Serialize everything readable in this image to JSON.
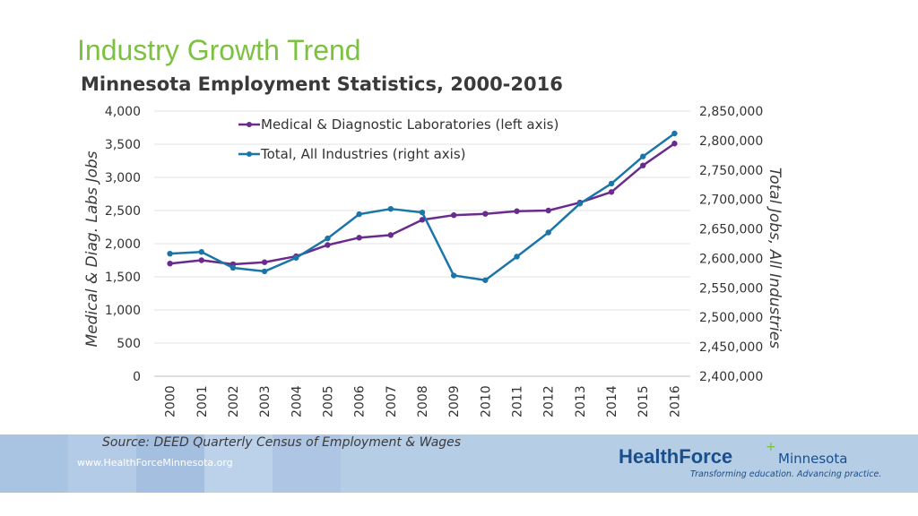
{
  "header": {
    "title": "Industry Growth Trend",
    "subtitle": "Minnesota Employment Statistics, 2000-2016"
  },
  "colors": {
    "title_green": "#7dc142",
    "medical_series": "#6a2c8c",
    "total_series": "#1a76a8",
    "brand_blue": "#1a4f8b",
    "footer_band": "#b6cde6"
  },
  "chart_data": {
    "type": "line",
    "x": [
      "2000",
      "2001",
      "2002",
      "2003",
      "2004",
      "2005",
      "2006",
      "2007",
      "2008",
      "2009",
      "2010",
      "2011",
      "2012",
      "2013",
      "2014",
      "2015",
      "2016"
    ],
    "series": [
      {
        "name": "Medical & Diagnostic Laboratories (left axis)",
        "axis": "left",
        "values": [
          1700,
          1750,
          1690,
          1720,
          1810,
          1980,
          2090,
          2130,
          2360,
          2430,
          2450,
          2490,
          2500,
          2620,
          2780,
          3180,
          3510
        ]
      },
      {
        "name": "Total, All Industries (right axis)",
        "axis": "right",
        "values": [
          2608000,
          2611000,
          2584000,
          2578000,
          2601000,
          2634000,
          2675000,
          2684000,
          2678000,
          2571000,
          2563000,
          2603000,
          2644000,
          2693000,
          2727000,
          2773000,
          2812000
        ]
      }
    ],
    "left_axis": {
      "label": "Medical & Diag. Labs Jobs",
      "ylim": [
        0,
        4000
      ],
      "ticks": [
        "0",
        "500",
        "1,000",
        "1,500",
        "2,000",
        "2,500",
        "3,000",
        "3,500",
        "4,000"
      ]
    },
    "right_axis": {
      "label": "Total Jobs, All Industries",
      "ylim": [
        2400000,
        2850000
      ],
      "ticks": [
        "2,400,000",
        "2,450,000",
        "2,500,000",
        "2,550,000",
        "2,600,000",
        "2,650,000",
        "2,700,000",
        "2,750,000",
        "2,800,000",
        "2,850,000"
      ]
    },
    "grid": true,
    "legend_position": "top-center"
  },
  "footer": {
    "source": "Source: DEED Quarterly Census of Employment & Wages",
    "url": "www.HealthForceMinnesota.org",
    "logo_health": "Health",
    "logo_force": "Force",
    "logo_plus": "+",
    "logo_region": "Minnesota",
    "logo_tagline": "Transforming education. Advancing practice."
  }
}
